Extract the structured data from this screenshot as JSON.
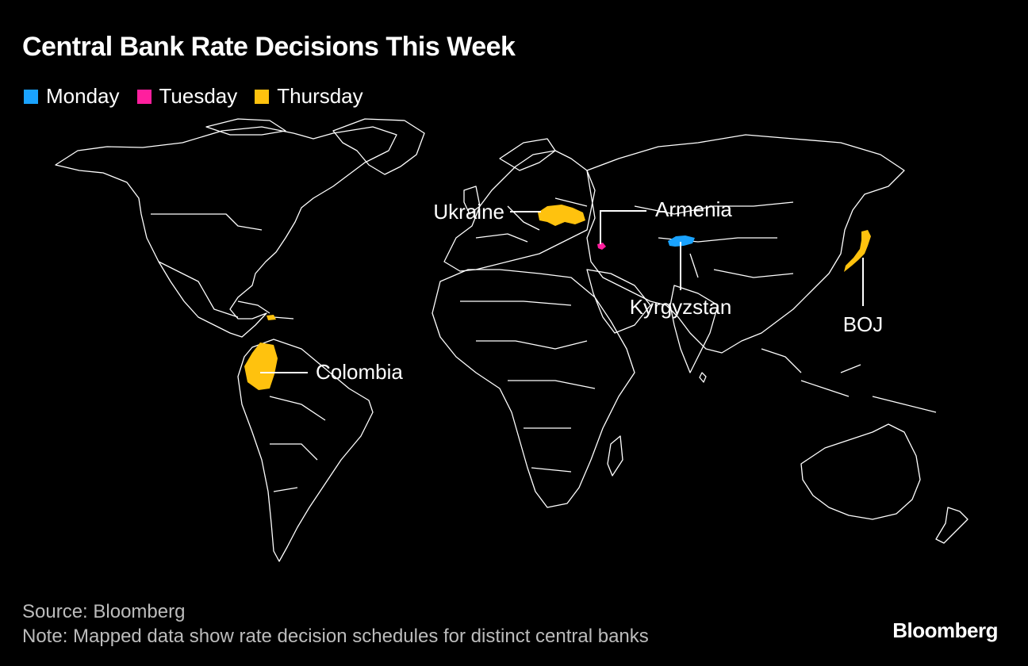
{
  "title": "Central Bank Rate Decisions This Week",
  "legend": [
    {
      "label": "Monday",
      "color": "#1aa3ff"
    },
    {
      "label": "Tuesday",
      "color": "#ff1f9e"
    },
    {
      "label": "Thursday",
      "color": "#ffc20e"
    }
  ],
  "map_labels": {
    "ukraine": "Ukraine",
    "armenia": "Armenia",
    "kyrgyzstan": "Kyrgyzstan",
    "boj": "BOJ",
    "colombia": "Colombia"
  },
  "highlighted_countries": [
    {
      "name": "Ukraine",
      "day": "Thursday"
    },
    {
      "name": "Armenia",
      "day": "Tuesday"
    },
    {
      "name": "Kyrgyzstan",
      "day": "Monday"
    },
    {
      "name": "Japan",
      "day": "Thursday"
    },
    {
      "name": "Colombia",
      "day": "Thursday"
    },
    {
      "name": "Dominican Republic",
      "day": "Thursday"
    }
  ],
  "footer": {
    "source": "Source: Bloomberg",
    "note": "Note: Mapped data show rate decision schedules for distinct central banks"
  },
  "brand": "Bloomberg"
}
